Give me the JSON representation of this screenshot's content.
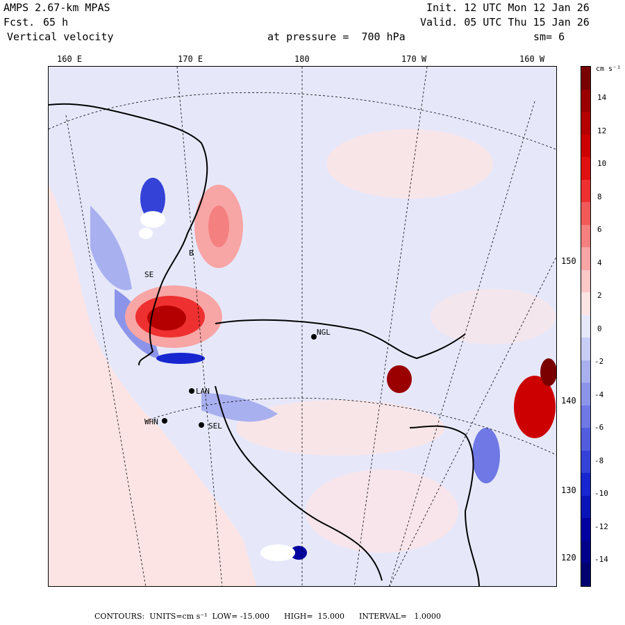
{
  "header": {
    "model": "AMPS 2.67-km MPAS",
    "fcst_label": "Fcst.",
    "fcst_value": "65 h",
    "field": "Vertical velocity",
    "init": "Init. 12 UTC Mon 12 Jan 26",
    "valid": "Valid. 05 UTC Thu 15 Jan 26",
    "level": "at pressure =  700 hPa",
    "smooth": "sm= 6"
  },
  "axes": {
    "lon_labels": [
      "160 E",
      "170 E",
      "180",
      "170 W",
      "160 W"
    ],
    "lat_labels": [
      "150 W",
      "140 W",
      "130 W",
      "120 W"
    ]
  },
  "stations": [
    {
      "label": "NGL"
    },
    {
      "label": "LAN"
    },
    {
      "label": "WHN"
    },
    {
      "label": "SEL"
    },
    {
      "label": "B"
    },
    {
      "label": "SE"
    }
  ],
  "colorbar": {
    "units": "cm s⁻¹",
    "ticks": [
      "14",
      "12",
      "10",
      "8",
      "6",
      "4",
      "2",
      "0",
      "-2",
      "-4",
      "-6",
      "-8",
      "-10",
      "-12",
      "-14"
    ],
    "colors": [
      "#7a0000",
      "#9a0000",
      "#b40000",
      "#cc0000",
      "#e01010",
      "#ee3030",
      "#f25a5a",
      "#f58080",
      "#f8a5a5",
      "#fbc8c8",
      "#fde4e4",
      "#e6e8fa",
      "#c8cdf5",
      "#a9b0ef",
      "#8c94ea",
      "#6f78e4",
      "#525dde",
      "#3542d8",
      "#1826d0",
      "#0a14b8",
      "#0000a0",
      "#00008a",
      "#000070"
    ]
  },
  "footer": {
    "contours": "CONTOURS:  UNITS=cm s⁻¹  LOW= -15.000      HIGH=  15.000      INTERVAL=   1.0000"
  }
}
